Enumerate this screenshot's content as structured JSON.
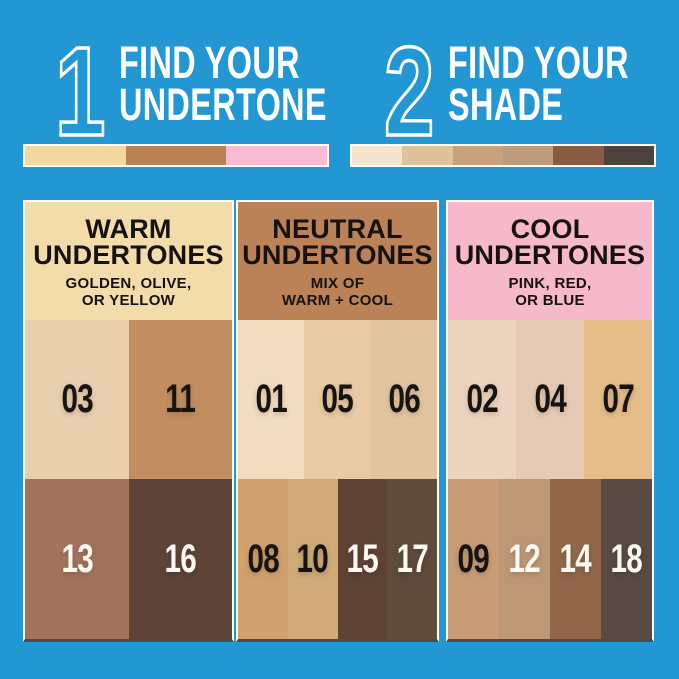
{
  "page": {
    "background": "#2397d3"
  },
  "steps": [
    {
      "number": "1",
      "line1": "FIND YOUR",
      "line2": "UNDERTONE"
    },
    {
      "number": "2",
      "line1": "FIND YOUR",
      "line2": "SHADE"
    }
  ],
  "undertone_bar": {
    "swatches": [
      {
        "name": "warm",
        "color": "#f3d9a0"
      },
      {
        "name": "neutral",
        "color": "#bb8054"
      },
      {
        "name": "cool",
        "color": "#f9bad3"
      }
    ]
  },
  "shade_bar": {
    "swatches": [
      {
        "color": "#f3e4cd"
      },
      {
        "color": "#dfc29c"
      },
      {
        "color": "#c9a27b"
      },
      {
        "color": "#bf9b7d"
      },
      {
        "color": "#8a5b42"
      },
      {
        "color": "#4e423d"
      }
    ]
  },
  "panels": [
    {
      "id": "warm",
      "header_bg": "#f2dcaa",
      "title_line1": "WARM",
      "title_line2": "UNDERTONES",
      "subtitle_line1": "GOLDEN, OLIVE,",
      "subtitle_line2": "OR YELLOW",
      "light_shades": [
        {
          "num": "03",
          "color": "#e8cfae",
          "text_color": "#17130f"
        },
        {
          "num": "11",
          "color": "#c28e5f",
          "text_color": "#17130f"
        }
      ],
      "deep_shades": [
        {
          "num": "13",
          "color": "#a4735b",
          "text_color": "#fdf9f1"
        },
        {
          "num": "16",
          "color": "#5d4338",
          "text_color": "#fdf9f1"
        }
      ]
    },
    {
      "id": "neutral",
      "header_bg": "#bb8257",
      "title_line1": "NEUTRAL",
      "title_line2": "UNDERTONES",
      "subtitle_line1": "MIX OF",
      "subtitle_line2": "WARM + COOL",
      "light_shades": [
        {
          "num": "01",
          "color": "#f1dcc0",
          "text_color": "#17130f"
        },
        {
          "num": "05",
          "color": "#e8cba4",
          "text_color": "#17130f"
        },
        {
          "num": "06",
          "color": "#e2c5a0",
          "text_color": "#17130f"
        }
      ],
      "deep_shades": [
        {
          "num": "08",
          "color": "#d0a16c",
          "text_color": "#17130f"
        },
        {
          "num": "10",
          "color": "#d0aa78",
          "text_color": "#17130f"
        },
        {
          "num": "15",
          "color": "#5e4334",
          "text_color": "#fdf9f1"
        },
        {
          "num": "17",
          "color": "#5f4a3c",
          "text_color": "#fdf9f1"
        }
      ]
    },
    {
      "id": "cool",
      "header_bg": "#f5b9cb",
      "title_line1": "COOL",
      "title_line2": "UNDERTONES",
      "subtitle_line1": "PINK, RED,",
      "subtitle_line2": "OR BLUE",
      "light_shades": [
        {
          "num": "02",
          "color": "#ecd3bd",
          "text_color": "#17130f"
        },
        {
          "num": "04",
          "color": "#e6cab3",
          "text_color": "#17130f"
        },
        {
          "num": "07",
          "color": "#e5bd88",
          "text_color": "#17130f"
        }
      ],
      "deep_shades": [
        {
          "num": "09",
          "color": "#c89c76",
          "text_color": "#17130f"
        },
        {
          "num": "12",
          "color": "#bd9877",
          "text_color": "#fdf9f1"
        },
        {
          "num": "14",
          "color": "#92664a",
          "text_color": "#fdf9f1"
        },
        {
          "num": "18",
          "color": "#594a44",
          "text_color": "#fdf9f1"
        }
      ]
    }
  ]
}
